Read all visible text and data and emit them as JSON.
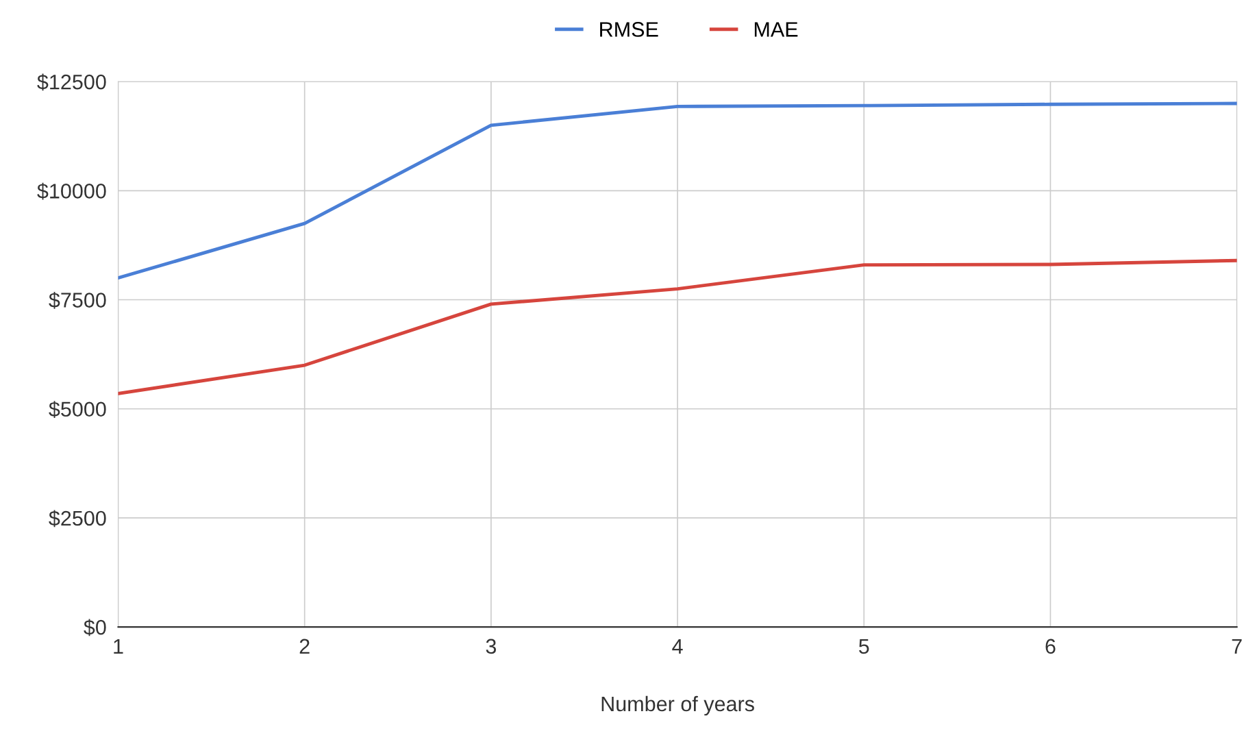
{
  "chart_data": {
    "type": "line",
    "xlabel": "Number of years",
    "x": [
      1,
      2,
      3,
      4,
      5,
      6,
      7
    ],
    "series": [
      {
        "name": "RMSE",
        "color": "#4a7fd6",
        "values": [
          8000,
          9250,
          11500,
          11930,
          11950,
          11980,
          12000
        ]
      },
      {
        "name": "MAE",
        "color": "#d6453d",
        "values": [
          5350,
          6000,
          7400,
          7750,
          8300,
          8310,
          8400
        ]
      }
    ],
    "xlim": [
      1,
      7
    ],
    "xticks": [
      1,
      2,
      3,
      4,
      5,
      6,
      7
    ],
    "ylim": [
      0,
      12500
    ],
    "yticks": [
      {
        "value": 0,
        "label": "$0"
      },
      {
        "value": 2500,
        "label": "$2500"
      },
      {
        "value": 5000,
        "label": "$5000"
      },
      {
        "value": 7500,
        "label": "$7500"
      },
      {
        "value": 10000,
        "label": "$10000"
      },
      {
        "value": 12500,
        "label": "$12500"
      }
    ],
    "grid": true,
    "legend": "top",
    "marker": "none",
    "line_style": "solid"
  }
}
